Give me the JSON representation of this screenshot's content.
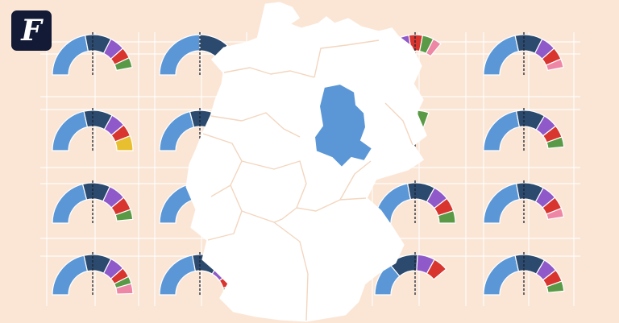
{
  "brand": {
    "logo_letter": "F",
    "colors": {
      "badge": "#121a35",
      "letter": "#ffffff"
    }
  },
  "background": {
    "color": "#fbe6d6",
    "grid_color": "#ffffff"
  },
  "map": {
    "fill": "#ffffff",
    "border_color": "#f3d6bf",
    "highlight_fill": "#5b97d6",
    "highlight_region": "sachsen-anhalt"
  },
  "party_colors": [
    "#5b97d6",
    "#2b4a6e",
    "#8f59c9",
    "#d8352f",
    "#5a9a46",
    "#e8bf2e",
    "#ee86a6"
  ],
  "seat_charts": [
    {
      "name": "chart-r1-c1",
      "shares": [
        0.44,
        0.21,
        0.12,
        0.09,
        0.08,
        0,
        0
      ]
    },
    {
      "name": "chart-r1-c2",
      "shares": [
        0.5,
        0.24,
        0.1,
        0.09,
        0.07,
        0,
        0
      ]
    },
    {
      "name": "chart-r1-c3",
      "shares": [
        0.09,
        0.24,
        0.12,
        0.11,
        0.09,
        0,
        0.07
      ]
    },
    {
      "name": "chart-r1-c4",
      "shares": [
        0.43,
        0.22,
        0.12,
        0.1,
        0,
        0,
        0.07
      ]
    },
    {
      "name": "chart-r2-c1",
      "shares": [
        0.43,
        0.23,
        0.12,
        0.1,
        0,
        0.12,
        0
      ]
    },
    {
      "name": "chart-r2-c2",
      "shares": [
        0.42,
        0.25,
        0.1,
        0.09,
        0.08,
        0,
        0
      ]
    },
    {
      "name": "chart-r2-c3",
      "shares": [
        0.05,
        0.24,
        0.12,
        0.11,
        0.09,
        0,
        0
      ]
    },
    {
      "name": "chart-r2-c4",
      "shares": [
        0.44,
        0.23,
        0.12,
        0.1,
        0.08,
        0,
        0
      ]
    },
    {
      "name": "chart-r3-c1",
      "shares": [
        0.42,
        0.22,
        0.14,
        0.11,
        0.08,
        0,
        0
      ]
    },
    {
      "name": "chart-r3-c2",
      "shares": [
        0.45,
        0.25,
        0.1,
        0.09,
        0.07,
        0,
        0
      ]
    },
    {
      "name": "chart-r3-c3",
      "shares": [
        0.44,
        0.22,
        0.13,
        0.11,
        0.1,
        0,
        0
      ]
    },
    {
      "name": "chart-r3-c4",
      "shares": [
        0.44,
        0.22,
        0.12,
        0.1,
        0,
        0,
        0.07
      ]
    },
    {
      "name": "chart-r4-c1",
      "shares": [
        0.43,
        0.22,
        0.12,
        0.08,
        0.06,
        0,
        0.08
      ]
    },
    {
      "name": "chart-r4-c2",
      "shares": [
        0.44,
        0.23,
        0.13,
        0.11,
        0.07,
        0,
        0
      ]
    },
    {
      "name": "chart-r4-c3",
      "shares": [
        0.28,
        0.24,
        0.14,
        0.12,
        0,
        0,
        0
      ]
    },
    {
      "name": "chart-r4-c4",
      "shares": [
        0.43,
        0.24,
        0.12,
        0.1,
        0.08,
        0,
        0
      ]
    }
  ]
}
